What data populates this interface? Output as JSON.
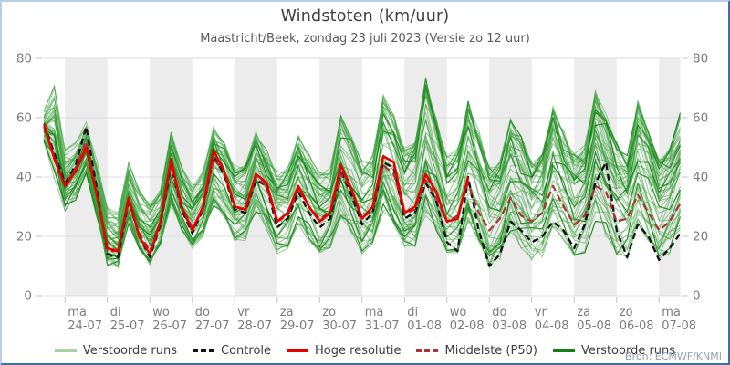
{
  "header": {
    "title": "Windstoten (km/uur)",
    "subtitle": "Maastricht/Beek, zondag 23 juli 2023 (Versie zo 12 uur)"
  },
  "source": "Bron: ECMWF/KNMI",
  "colors": {
    "background": "#ffffff",
    "day_band": "#ececec",
    "gridline": "#dcdce2",
    "tick": "#b9c7da",
    "axis_text": "#7c7c7c",
    "title_text": "#3f3f3f",
    "subtitle_text": "#5a5a5a",
    "ensemble_light": "#3aa03a",
    "ensemble_light_legend": "#a6d3a2",
    "ensemble_dark": "#157f15",
    "control": "#111111",
    "high_resolution": "#e60000",
    "median_p50": "#b03333",
    "frame_light": "#b7cde9",
    "frame_dark": "#3f6fa8",
    "source_text": "#95a0ad"
  },
  "legend": {
    "items": [
      {
        "label": "Verstoorde runs",
        "color": "#a6d3a2",
        "dash": false
      },
      {
        "label": "Controle",
        "color": "#111111",
        "dash": true
      },
      {
        "label": "Hoge resolutie",
        "color": "#e60000",
        "dash": false
      },
      {
        "label": "Middelste (P50)",
        "color": "#b03333",
        "dash": true
      },
      {
        "label": "Verstoorde runs",
        "color": "#157f15",
        "dash": false
      }
    ]
  },
  "chart_data": {
    "type": "line",
    "title": "Windstoten (km/uur)",
    "subtitle": "Maastricht/Beek, zondag 23 juli 2023 (Versie zo 12 uur)",
    "ylabel": "km/uur",
    "ylim": [
      0,
      80
    ],
    "y_ticks": [
      0,
      20,
      40,
      60,
      80
    ],
    "y_axis_sides": [
      "left",
      "right"
    ],
    "grid": true,
    "legend_position": "bottom",
    "x_start": "zo 23-07-2023 12:00",
    "x_step_hours": 6,
    "x_days": [
      "ma",
      "di",
      "wo",
      "do",
      "vr",
      "za",
      "zo",
      "ma",
      "di",
      "wo",
      "do",
      "vr",
      "za",
      "zo",
      "ma"
    ],
    "x_dates": [
      "24-07",
      "25-07",
      "26-07",
      "27-07",
      "28-07",
      "29-07",
      "30-07",
      "31-07",
      "01-08",
      "02-08",
      "03-08",
      "04-08",
      "05-08",
      "06-08",
      "07-08"
    ],
    "shaded_days": [
      "24-07",
      "26-07",
      "28-07",
      "30-07",
      "01-08",
      "03-08",
      "05-08",
      "07-08"
    ],
    "series": [
      {
        "name": "Controle",
        "style": "dashed-black",
        "values": [
          58,
          48,
          38,
          44,
          57,
          36,
          14,
          13,
          32,
          20,
          13,
          24,
          44,
          29,
          21,
          29,
          47,
          41,
          29,
          28,
          39,
          37,
          23,
          26,
          35,
          28,
          23,
          26,
          42,
          34,
          24,
          28,
          45,
          43,
          26,
          28,
          38,
          32,
          18,
          15,
          40,
          22,
          10,
          14,
          25,
          22,
          18,
          20,
          25,
          22,
          16,
          24,
          38,
          45,
          22,
          13,
          24,
          20,
          12,
          16,
          21
        ]
      },
      {
        "name": "Hoge resolutie",
        "style": "solid-red",
        "note": "ends at +10 days (02-08 12:00)",
        "values": [
          58,
          46,
          37,
          42,
          50,
          34,
          16,
          15,
          33,
          20,
          14,
          25,
          46,
          30,
          22,
          30,
          49,
          42,
          30,
          29,
          41,
          38,
          25,
          28,
          37,
          30,
          25,
          28,
          44,
          36,
          26,
          30,
          47,
          45,
          28,
          30,
          41,
          35,
          25,
          26,
          40
        ]
      },
      {
        "name": "Middelste (P50)",
        "style": "dashed-darkred",
        "values": [
          57,
          47,
          37,
          43,
          52,
          34,
          15,
          15,
          32,
          21,
          15,
          25,
          44,
          30,
          23,
          29,
          46,
          42,
          30,
          29,
          40,
          37,
          25,
          27,
          36,
          30,
          26,
          28,
          41,
          36,
          26,
          29,
          44,
          41,
          28,
          29,
          39,
          33,
          25,
          27,
          38,
          28,
          22,
          26,
          33,
          27,
          25,
          28,
          37,
          30,
          24,
          27,
          37,
          35,
          25,
          26,
          34,
          28,
          22,
          25,
          31
        ]
      }
    ],
    "ensemble": {
      "name": "Verstoorde runs",
      "member_count": 50,
      "min": [
        50,
        38,
        28,
        32,
        40,
        26,
        10,
        9,
        24,
        15,
        10,
        17,
        30,
        22,
        16,
        20,
        30,
        26,
        18,
        18,
        28,
        22,
        14,
        15,
        24,
        18,
        14,
        16,
        26,
        20,
        14,
        16,
        28,
        24,
        15,
        16,
        26,
        22,
        13,
        14,
        24,
        18,
        9,
        12,
        20,
        16,
        11,
        13,
        22,
        18,
        12,
        14,
        25,
        20,
        13,
        12,
        22,
        18,
        10,
        14,
        22
      ],
      "max": [
        64,
        74,
        50,
        52,
        60,
        46,
        30,
        28,
        45,
        36,
        32,
        36,
        57,
        44,
        38,
        42,
        58,
        52,
        44,
        44,
        56,
        50,
        42,
        44,
        54,
        48,
        42,
        44,
        62,
        55,
        46,
        48,
        68,
        62,
        50,
        52,
        75,
        60,
        48,
        50,
        66,
        56,
        44,
        46,
        62,
        54,
        46,
        48,
        64,
        56,
        48,
        52,
        70,
        62,
        52,
        48,
        66,
        56,
        46,
        50,
        62
      ]
    }
  }
}
